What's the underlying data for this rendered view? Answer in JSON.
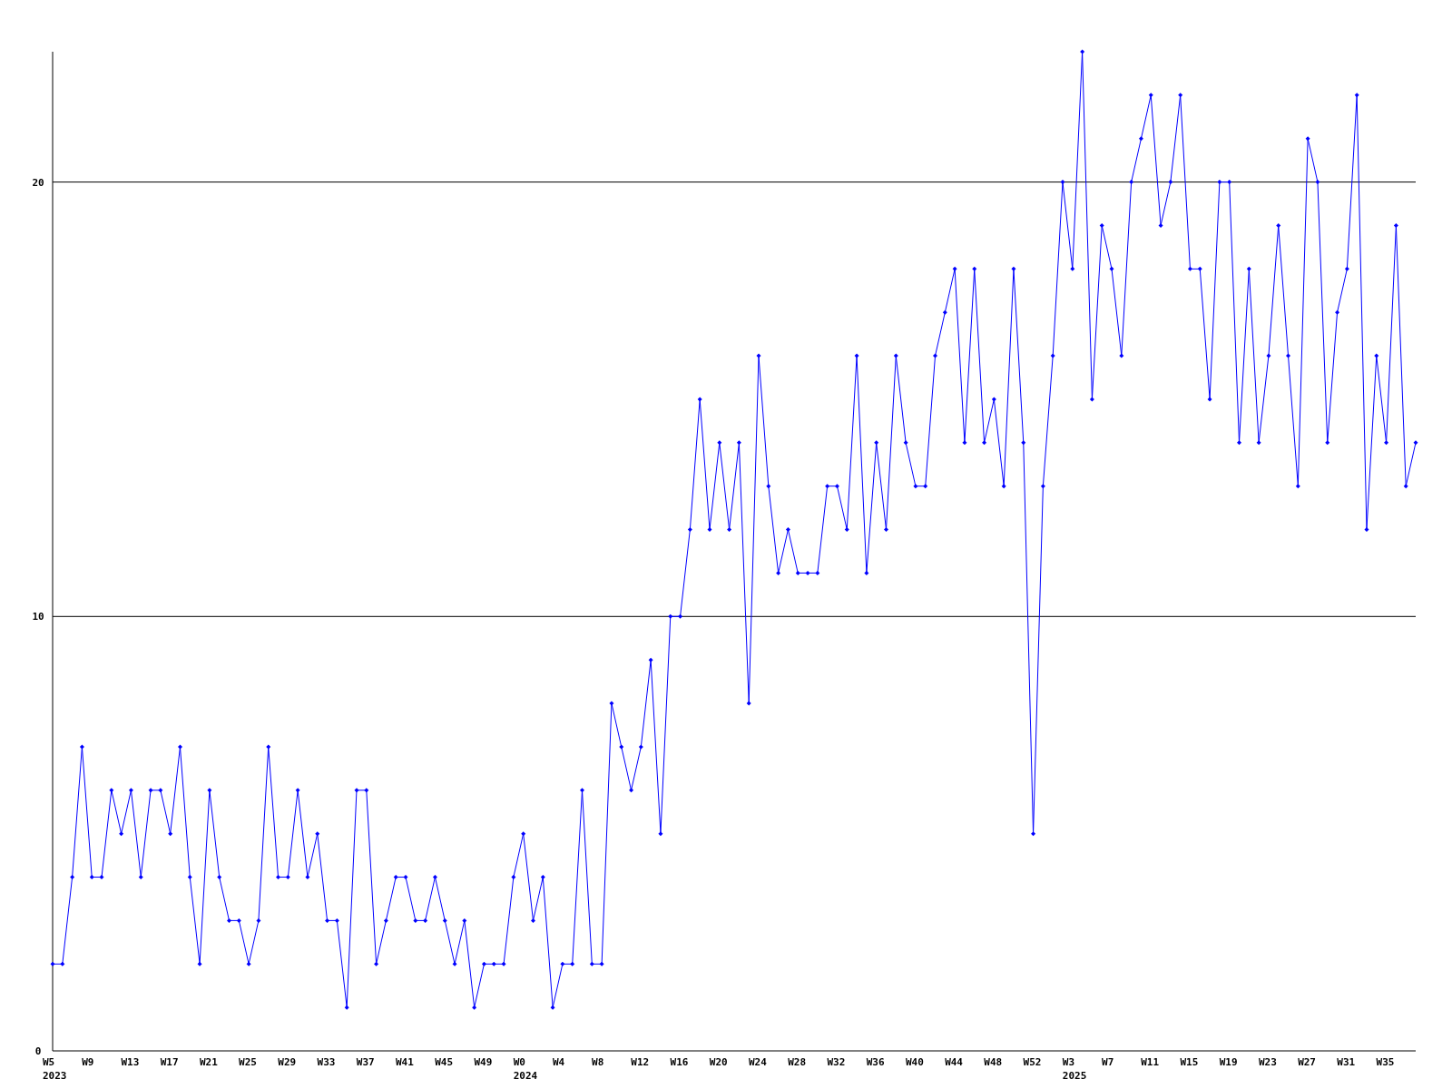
{
  "chart_data": {
    "type": "line",
    "categories": [
      "W5\n2023",
      null,
      null,
      null,
      "W9",
      null,
      null,
      null,
      "W13",
      null,
      null,
      null,
      "W17",
      null,
      null,
      null,
      "W21",
      null,
      null,
      null,
      "W25",
      null,
      null,
      null,
      "W29",
      null,
      null,
      null,
      "W33",
      null,
      null,
      null,
      "W37",
      null,
      null,
      null,
      "W41",
      null,
      null,
      null,
      "W45",
      null,
      null,
      null,
      "W49",
      null,
      null,
      null,
      "W0\n2024",
      null,
      null,
      null,
      "W4",
      null,
      null,
      null,
      "W8",
      null,
      null,
      null,
      "W12",
      null,
      null,
      null,
      "W16",
      null,
      null,
      null,
      "W20",
      null,
      null,
      null,
      "W24",
      null,
      null,
      null,
      "W28",
      null,
      null,
      null,
      "W32",
      null,
      null,
      null,
      "W36",
      null,
      null,
      null,
      "W40",
      null,
      null,
      null,
      "W44",
      null,
      null,
      null,
      "W48",
      null,
      null,
      null,
      "W52",
      null,
      null,
      null,
      "W3\n2025",
      null,
      null,
      null,
      "W7",
      null,
      null,
      null,
      "W11",
      null,
      null,
      null,
      "W15",
      null,
      null,
      null,
      "W19",
      null,
      null,
      null,
      "W23",
      null,
      null,
      null,
      "W27",
      null,
      null,
      null,
      "W31",
      null,
      null,
      null,
      "W35",
      null,
      null,
      null
    ],
    "series": [
      {
        "color": "#0000ff",
        "values": [
          2,
          2,
          4,
          7,
          4,
          4,
          6,
          5,
          6,
          4,
          6,
          6,
          5,
          7,
          4,
          2,
          6,
          4,
          3,
          3,
          2,
          3,
          7,
          4,
          4,
          6,
          4,
          5,
          3,
          3,
          1,
          6,
          6,
          2,
          3,
          4,
          4,
          3,
          3,
          4,
          3,
          2,
          3,
          1,
          2,
          2,
          2,
          4,
          5,
          3,
          4,
          1,
          2,
          2,
          6,
          2,
          2,
          8,
          7,
          6,
          7,
          9,
          5,
          10,
          10,
          12,
          15,
          12,
          14,
          12,
          14,
          8,
          16,
          13,
          11,
          12,
          11,
          11,
          11,
          13,
          13,
          12,
          16,
          11,
          14,
          12,
          16,
          14,
          13,
          13,
          16,
          17,
          18,
          14,
          18,
          14,
          15,
          13,
          18,
          14,
          5,
          13,
          16,
          20,
          18,
          23,
          15,
          19,
          18,
          16,
          20,
          21,
          22,
          19,
          20,
          22,
          18,
          18,
          15,
          20,
          20,
          14,
          18,
          14,
          16,
          19,
          16,
          13,
          21,
          20,
          14,
          17,
          18,
          22,
          12,
          16,
          14,
          19,
          13,
          14
        ]
      }
    ],
    "ylim": [
      0,
      23
    ],
    "yticks": [
      0,
      10,
      20
    ],
    "grid": "y",
    "marker": "diamond",
    "line_style": "solid"
  }
}
